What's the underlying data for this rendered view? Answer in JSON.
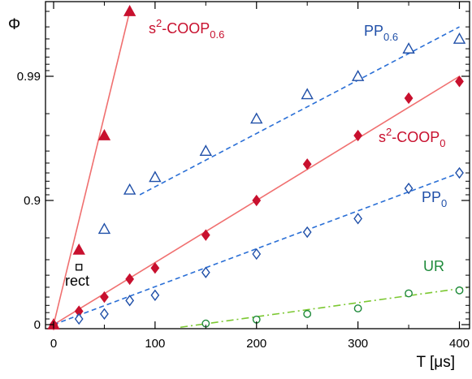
{
  "chart_data": {
    "type": "scatter",
    "xlabel": "T [μs]",
    "ylabel": "Φ",
    "xlim": [
      -8,
      410
    ],
    "x_ticks": [
      0,
      100,
      200,
      300,
      400
    ],
    "x_tick_labels": [
      "0",
      "100",
      "200",
      "300",
      "400"
    ],
    "y_ticks": [
      0,
      0.9,
      0.99
    ],
    "y_tick_labels": [
      "0",
      "0.9",
      "0.99"
    ],
    "y_scale": "log(1 - Φ)",
    "grid": false,
    "series": [
      {
        "name": "s2-COOP0.6",
        "label_parts": {
          "base": "s",
          "sup": "2",
          "mid": "-COOP",
          "sub": "0.6"
        },
        "marker": "filled-triangle",
        "color": "#c8102e",
        "line_color": "#f07070",
        "line_style": "solid",
        "x": [
          0,
          25,
          50,
          75
        ],
        "y": [
          0,
          0.75,
          0.97,
          0.997
        ],
        "fit": {
          "x": [
            0,
            75
          ],
          "y": [
            0,
            0.997
          ]
        }
      },
      {
        "name": "PP0.6",
        "label_parts": {
          "base": "PP",
          "sub": "0.6"
        },
        "marker": "open-triangle",
        "color": "#1f4fa8",
        "line_color": "#2a6fd6",
        "line_style": "dashed",
        "x": [
          50,
          75,
          100,
          150,
          200,
          250,
          300,
          350,
          400
        ],
        "y": [
          0.83,
          0.918,
          0.935,
          0.96,
          0.978,
          0.986,
          0.99,
          0.994,
          0.995
        ],
        "fit": {
          "x": [
            85,
            400
          ],
          "y": [
            0.91,
            0.996
          ]
        }
      },
      {
        "name": "s2-COOP0",
        "label_parts": {
          "base": "s",
          "sup": "2",
          "mid": "-COOP",
          "sub": "0"
        },
        "marker": "filled-diamond",
        "color": "#c8102e",
        "line_color": "#f07070",
        "line_style": "solid",
        "x": [
          0,
          25,
          50,
          75,
          100,
          150,
          200,
          250,
          300,
          350,
          400
        ],
        "y": [
          0,
          0.22,
          0.4,
          0.57,
          0.65,
          0.81,
          0.9,
          0.949,
          0.97,
          0.985,
          0.989
        ],
        "fit": {
          "x": [
            0,
            400
          ],
          "y": [
            0,
            0.99
          ]
        }
      },
      {
        "name": "PP0",
        "label_parts": {
          "base": "PP",
          "sub": "0"
        },
        "marker": "open-diamond",
        "color": "#1f4fa8",
        "line_color": "#2a6fd6",
        "line_style": "dashed",
        "x": [
          25,
          50,
          75,
          100,
          150,
          200,
          250,
          300,
          350,
          400
        ],
        "y": [
          0.1,
          0.18,
          0.36,
          0.42,
          0.62,
          0.73,
          0.82,
          0.86,
          0.92,
          0.94
        ],
        "fit": {
          "x": [
            0,
            400
          ],
          "y": [
            0,
            0.94
          ]
        }
      },
      {
        "name": "UR",
        "label_parts": {
          "base": "UR"
        },
        "marker": "open-circle",
        "color": "#1e8a3a",
        "line_color": "#7cc832",
        "line_style": "dashdot",
        "x": [
          150,
          200,
          250,
          300,
          350,
          400
        ],
        "y": [
          0.02,
          0.09,
          0.18,
          0.26,
          0.44,
          0.47
        ],
        "fit": {
          "x": [
            125,
            410
          ],
          "y": [
            -0.05,
            0.5
          ]
        }
      },
      {
        "name": "rect",
        "label_parts": {
          "base": "rect"
        },
        "marker": "open-square",
        "color": "#000000",
        "line_style": "none",
        "x": [
          25
        ],
        "y": [
          0.655
        ],
        "fit": null
      }
    ]
  }
}
